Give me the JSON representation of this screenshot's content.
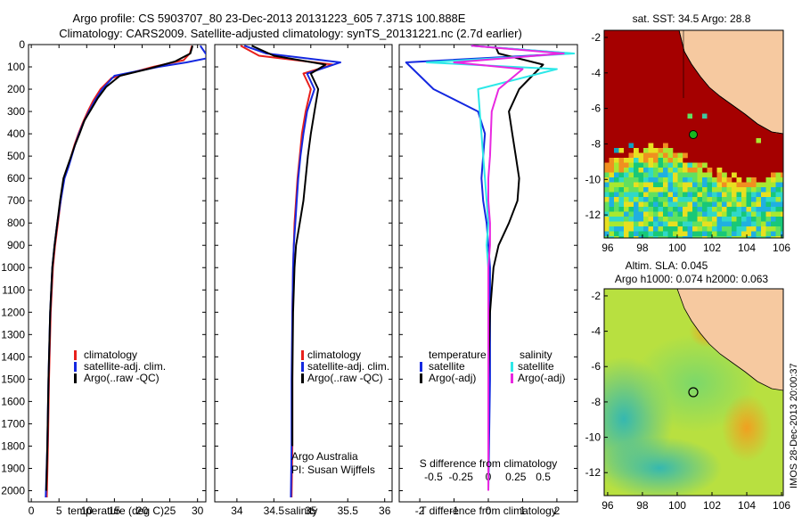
{
  "header": {
    "title_line1": "Argo profile: CS 5903707_80 23-Dec-2013 20131223_605 7.371S 100.888E",
    "title_line2": "Climatology: CARS2009. Satellite-adjusted climatology: synTS_20131221.nc (2.7d earlier)"
  },
  "colors": {
    "climatology": "#e8201c",
    "satellite": "#1428e0",
    "argo": "#000000",
    "sal_satellite": "#2ee8e8",
    "sal_argo": "#e828e0",
    "land": "#f6c9a0",
    "sst_warm": "#a50000"
  },
  "chart_data": [
    {
      "type": "line",
      "id": "temperature-profile",
      "xlabel": "temperature (deg C)",
      "ylim": [
        2050,
        0
      ],
      "xlim": [
        -0.5,
        31.5
      ],
      "xticks": [
        0,
        5,
        10,
        15,
        20,
        25,
        30
      ],
      "yticks": [
        0,
        100,
        200,
        300,
        400,
        500,
        600,
        700,
        800,
        900,
        1000,
        1100,
        1200,
        1300,
        1400,
        1500,
        1600,
        1700,
        1800,
        1900,
        2000
      ],
      "legend": [
        "climatology",
        "satellite-adj. clim.",
        "Argo(..raw -QC)"
      ],
      "legend_position": "lower-center",
      "series": [
        {
          "name": "climatology",
          "color": "#e8201c",
          "x": [
            29.0,
            28.6,
            27.5,
            22.0,
            14.5,
            12.5,
            11.2,
            10.2,
            9.3,
            8.5,
            7.8,
            7.2,
            6.6,
            5.9,
            5.3,
            4.8,
            4.3,
            3.9,
            3.5,
            3.2,
            3.0,
            2.8
          ],
          "y": [
            5,
            40,
            70,
            100,
            150,
            200,
            250,
            300,
            350,
            400,
            450,
            500,
            550,
            600,
            700,
            800,
            900,
            1000,
            1200,
            1500,
            1800,
            2030
          ]
        },
        {
          "name": "satellite-adj. clim.",
          "color": "#1428e0",
          "x": [
            30.5,
            32.0,
            28.0,
            23.0,
            15.0,
            12.8,
            11.5,
            10.4,
            9.4,
            8.6,
            7.9,
            7.3,
            6.7,
            6.0,
            5.3,
            4.7,
            4.2,
            3.8,
            3.4,
            3.1,
            2.9,
            2.6
          ],
          "y": [
            5,
            60,
            80,
            100,
            140,
            200,
            250,
            300,
            350,
            400,
            450,
            500,
            550,
            600,
            700,
            800,
            900,
            1000,
            1200,
            1500,
            1800,
            2030
          ]
        },
        {
          "name": "Argo(..raw -QC)",
          "color": "#000000",
          "x": [
            29.1,
            28.7,
            26.0,
            21.0,
            16.0,
            13.5,
            12.0,
            10.8,
            9.6,
            8.7,
            7.9,
            7.2,
            6.5,
            5.8,
            5.2,
            4.7,
            4.2,
            3.8,
            3.4,
            3.1,
            2.9,
            2.7
          ],
          "y": [
            5,
            40,
            75,
            110,
            140,
            190,
            240,
            290,
            340,
            400,
            450,
            500,
            550,
            600,
            700,
            800,
            900,
            1000,
            1200,
            1500,
            1800,
            2000
          ]
        }
      ]
    },
    {
      "type": "line",
      "id": "salinity-profile",
      "xlabel": "salinity",
      "ylim": [
        2050,
        0
      ],
      "xlim": [
        33.7,
        36.1
      ],
      "xticks": [
        34,
        34.5,
        35,
        35.5,
        36
      ],
      "legend": [
        "climatology",
        "satellite-adj. clim.",
        "Argo(..raw -QC)"
      ],
      "legend_position": "lower-right",
      "annotation": [
        "Argo Australia",
        "PI: Susan Wijffels"
      ],
      "series": [
        {
          "name": "climatology",
          "color": "#e8201c",
          "x": [
            34.05,
            34.3,
            35.3,
            34.9,
            35.0,
            34.93,
            34.88,
            34.85,
            34.82,
            34.8,
            34.78,
            34.77,
            34.76,
            34.75,
            34.75,
            34.75,
            34.74
          ],
          "y": [
            5,
            50,
            90,
            130,
            200,
            300,
            400,
            500,
            600,
            700,
            800,
            900,
            1000,
            1200,
            1500,
            1800,
            2030
          ]
        },
        {
          "name": "satellite-adj. clim.",
          "color": "#1428e0",
          "x": [
            34.1,
            34.4,
            35.4,
            34.95,
            35.05,
            34.95,
            34.9,
            34.86,
            34.83,
            34.81,
            34.79,
            34.77,
            34.76,
            34.75,
            34.74,
            34.74,
            34.73
          ],
          "y": [
            5,
            40,
            80,
            130,
            200,
            300,
            400,
            500,
            600,
            700,
            800,
            900,
            1000,
            1200,
            1500,
            1800,
            2030
          ]
        },
        {
          "name": "Argo(..raw -QC)",
          "color": "#000000",
          "x": [
            34.2,
            34.5,
            35.2,
            35.0,
            35.1,
            35.05,
            35.0,
            34.96,
            34.93,
            34.9,
            34.85,
            34.8,
            34.78,
            34.76,
            34.75,
            34.75
          ],
          "y": [
            5,
            50,
            90,
            130,
            200,
            300,
            400,
            500,
            600,
            700,
            800,
            900,
            1000,
            1200,
            1500,
            1800
          ]
        }
      ]
    },
    {
      "type": "line",
      "id": "difference-profile",
      "xlabel": "T difference from climatology",
      "top_axis_label": "S difference from climatology",
      "ylim": [
        2050,
        0
      ],
      "xlim": [
        -2.6,
        2.6
      ],
      "xticks": [
        -2,
        -1,
        0,
        1,
        2
      ],
      "top_ticks": [
        "-0.5",
        "-0.25",
        "0",
        "0.25",
        "0.5"
      ],
      "legend_left_title": "temperature",
      "legend_right_title": "salinity",
      "legend": [
        "satellite",
        "Argo(-adj)",
        "satellite",
        "Argo(-adj)"
      ],
      "series": [
        {
          "name": "satellite",
          "quantity": "temperature",
          "color": "#1428e0",
          "x": [
            -0.5,
            2.4,
            -2.4,
            -1.6,
            -0.3,
            -0.1,
            -0.15,
            -0.2,
            -0.15,
            -0.05,
            0.0,
            0.05,
            0.05,
            0.05,
            0.0
          ],
          "y": [
            5,
            40,
            80,
            200,
            300,
            400,
            500,
            600,
            700,
            800,
            900,
            1000,
            1200,
            1500,
            2000
          ]
        },
        {
          "name": "Argo(-adj)",
          "quantity": "temperature",
          "color": "#000000",
          "x": [
            0.2,
            0.3,
            1.6,
            0.9,
            0.6,
            0.7,
            0.8,
            0.9,
            0.85,
            0.6,
            0.3,
            0.15,
            0.05,
            0.0,
            0.0
          ],
          "y": [
            5,
            40,
            90,
            200,
            300,
            400,
            500,
            600,
            700,
            800,
            900,
            1000,
            1200,
            1500,
            2000
          ]
        },
        {
          "name": "satellite",
          "quantity": "salinity",
          "color": "#2ee8e8",
          "x": [
            -0.5,
            2.5,
            -1.8,
            2.0,
            -0.3,
            -0.25,
            -0.15,
            -0.1,
            -0.05,
            0.0,
            -0.05,
            0.0,
            0.0,
            0.0,
            0.0
          ],
          "y": [
            5,
            40,
            80,
            110,
            200,
            300,
            500,
            600,
            700,
            800,
            900,
            1000,
            1200,
            1500,
            2000
          ]
        },
        {
          "name": "Argo(-adj)",
          "quantity": "salinity",
          "color": "#e828e0",
          "x": [
            -0.5,
            2.2,
            -1.0,
            1.0,
            0.3,
            0.1,
            0.05,
            0.0,
            0.0,
            0.05,
            0.05,
            0.0,
            0.0,
            0.0,
            0.0
          ],
          "y": [
            5,
            40,
            80,
            110,
            200,
            300,
            500,
            600,
            700,
            800,
            900,
            1000,
            1200,
            1500,
            2000
          ]
        }
      ]
    },
    {
      "type": "heatmap",
      "id": "sst-map",
      "title": "sat. SST: 34.5  Argo: 28.8",
      "xlim": [
        95.8,
        106.1
      ],
      "ylim": [
        -13.3,
        -1.6
      ],
      "xticks": [
        "96",
        "98",
        "100",
        "102",
        "104",
        "106"
      ],
      "yticks": [
        "-2",
        "-4",
        "-6",
        "-8",
        "-10",
        "-12"
      ],
      "argo_position": {
        "lon": 100.888,
        "lat": -7.371
      }
    },
    {
      "type": "heatmap",
      "id": "sla-map",
      "title_line1": "Altim. SLA: 0.045",
      "title_line2": "Argo h1000: 0.074 h2000: 0.063",
      "xlim": [
        95.8,
        106.1
      ],
      "ylim": [
        -13.3,
        -1.6
      ],
      "xticks": [
        "96",
        "98",
        "100",
        "102",
        "104",
        "106"
      ],
      "yticks": [
        "-2",
        "-4",
        "-6",
        "-8",
        "-10",
        "-12"
      ],
      "argo_position": {
        "lon": 100.888,
        "lat": -7.371
      }
    }
  ],
  "credit": "IMOS 28-Dec-2013 20:00:37"
}
